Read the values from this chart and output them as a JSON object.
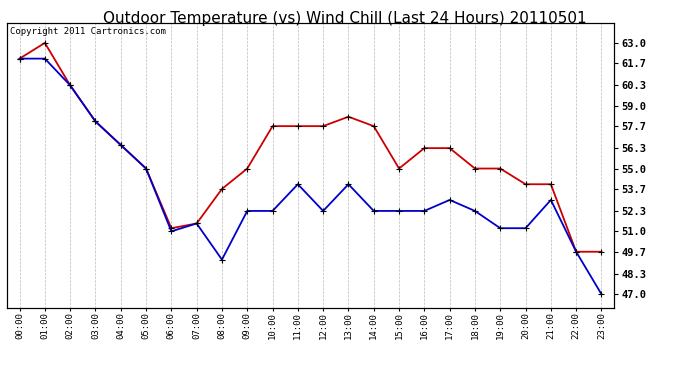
{
  "title": "Outdoor Temperature (vs) Wind Chill (Last 24 Hours) 20110501",
  "copyright_text": "Copyright 2011 Cartronics.com",
  "x_labels": [
    "00:00",
    "01:00",
    "02:00",
    "03:00",
    "04:00",
    "05:00",
    "06:00",
    "07:00",
    "08:00",
    "09:00",
    "10:00",
    "11:00",
    "12:00",
    "13:00",
    "14:00",
    "15:00",
    "16:00",
    "17:00",
    "18:00",
    "19:00",
    "20:00",
    "21:00",
    "22:00",
    "23:00"
  ],
  "red_data": [
    62.0,
    63.0,
    60.3,
    58.0,
    56.5,
    55.0,
    51.2,
    51.5,
    53.7,
    55.0,
    57.7,
    57.7,
    57.7,
    58.3,
    57.7,
    55.0,
    56.3,
    56.3,
    55.0,
    55.0,
    54.0,
    54.0,
    49.7,
    49.7
  ],
  "blue_data": [
    62.0,
    62.0,
    60.3,
    58.0,
    56.5,
    55.0,
    51.0,
    51.5,
    49.2,
    52.3,
    52.3,
    54.0,
    52.3,
    54.0,
    52.3,
    52.3,
    52.3,
    53.0,
    52.3,
    51.2,
    51.2,
    53.0,
    49.7,
    47.0
  ],
  "ylim_min": 46.15,
  "ylim_max": 64.3,
  "y_ticks": [
    47.0,
    48.3,
    49.7,
    51.0,
    52.3,
    53.7,
    55.0,
    56.3,
    57.7,
    59.0,
    60.3,
    61.7,
    63.0
  ],
  "red_color": "#cc0000",
  "blue_color": "#0000cc",
  "bg_color": "#ffffff",
  "plot_bg_color": "#ffffff",
  "grid_color": "#bbbbbb",
  "title_fontsize": 11,
  "copyright_fontsize": 6.5
}
